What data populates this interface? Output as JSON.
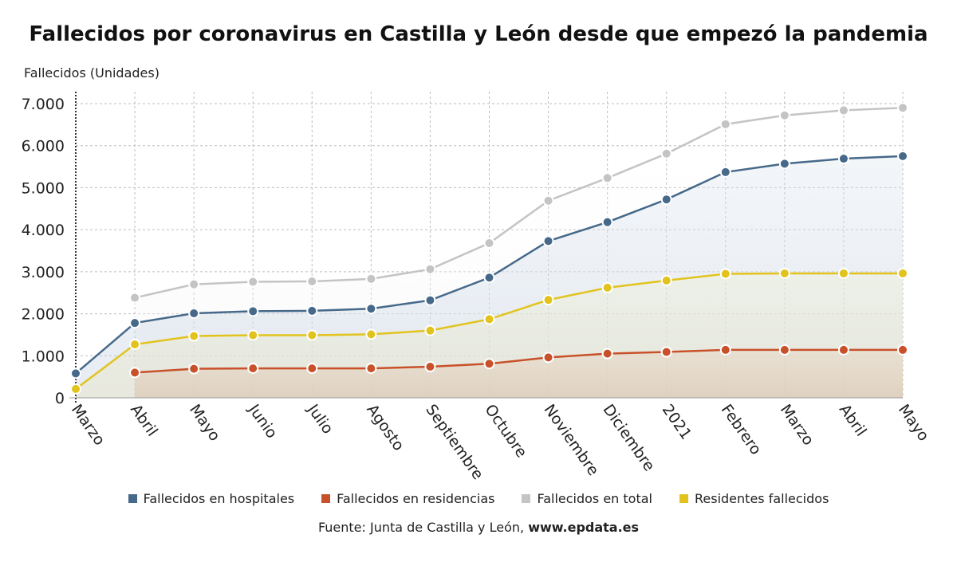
{
  "chart_data": {
    "type": "line",
    "title": "Fallecidos por coronavirus en Castilla y León desde que empezó la pandemia",
    "ylabel": "Fallecidos (Unidades)",
    "xlabel": "",
    "categories": [
      "Marzo",
      "Abril",
      "Mayo",
      "Junio",
      "Julio",
      "Agosto",
      "Septiembre",
      "Octubre",
      "Noviembre",
      "Diciembre",
      "2021",
      "Febrero",
      "Marzo",
      "Abril",
      "Mayo"
    ],
    "ylim": [
      0,
      7000
    ],
    "yticks": [
      0,
      1000,
      2000,
      3000,
      4000,
      5000,
      6000,
      7000
    ],
    "ytick_labels": [
      "0",
      "1.000",
      "2.000",
      "3.000",
      "4.000",
      "5.000",
      "6.000",
      "7.000"
    ],
    "grid": true,
    "legend_position": "bottom",
    "series": [
      {
        "name": "Fallecidos en hospitales",
        "color": "#46698a",
        "values": [
          580,
          1780,
          2010,
          2060,
          2070,
          2120,
          2320,
          2860,
          3730,
          4180,
          4720,
          5370,
          5570,
          5690,
          5750
        ]
      },
      {
        "name": "Fallecidos en residencias",
        "color": "#c8512a",
        "values": [
          null,
          600,
          690,
          700,
          700,
          700,
          740,
          810,
          960,
          1050,
          1090,
          1140,
          1140,
          1140,
          1140
        ]
      },
      {
        "name": "Fallecidos en total",
        "color": "#c4c4c4",
        "values": [
          null,
          2380,
          2700,
          2760,
          2770,
          2830,
          3060,
          3680,
          4690,
          5230,
          5810,
          6510,
          6720,
          6840,
          6900
        ]
      },
      {
        "name": "Residentes fallecidos",
        "color": "#e2c31e",
        "values": [
          210,
          1270,
          1470,
          1490,
          1490,
          1510,
          1600,
          1870,
          2330,
          2620,
          2790,
          2950,
          2960,
          2960,
          2960
        ]
      }
    ]
  },
  "source": {
    "prefix": "Fuente: Junta de Castilla y León, ",
    "link": "www.epdata.es"
  }
}
